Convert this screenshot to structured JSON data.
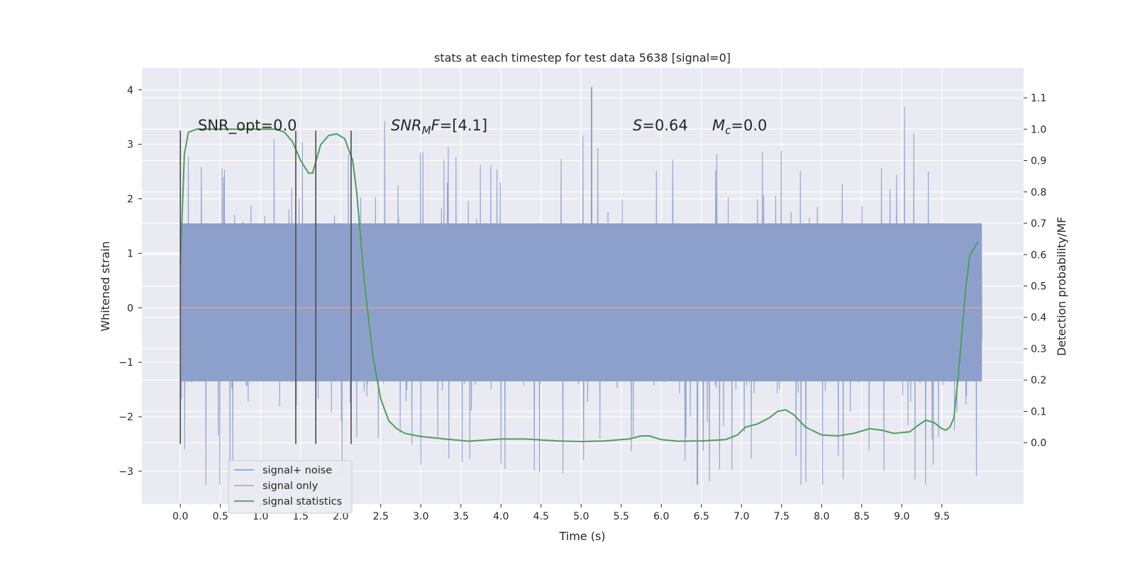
{
  "chart_data": {
    "type": "line",
    "title": "stats at each timestep for test data 5638 [signal=0]",
    "xlabel": "Time (s)",
    "ylabel_left": "Whitened strain",
    "ylabel_right": "Detection probability/MF",
    "xlim": [
      -0.48,
      10.52
    ],
    "ylim_left": [
      -3.6,
      4.4
    ],
    "ylim_right": [
      -0.195,
      1.195
    ],
    "x_ticks": [
      "0.0",
      "0.5",
      "1.0",
      "1.5",
      "2.0",
      "2.5",
      "3.0",
      "3.5",
      "4.0",
      "4.5",
      "5.0",
      "5.5",
      "6.0",
      "6.5",
      "7.0",
      "7.5",
      "8.0",
      "8.5",
      "9.0",
      "9.5"
    ],
    "y_left_ticks": [
      {
        "value": -3,
        "label": "−3"
      },
      {
        "value": -2,
        "label": "−2"
      },
      {
        "value": -1,
        "label": "−1"
      },
      {
        "value": 0,
        "label": "0"
      },
      {
        "value": 1,
        "label": "1"
      },
      {
        "value": 2,
        "label": "2"
      },
      {
        "value": 3,
        "label": "3"
      },
      {
        "value": 4,
        "label": "4"
      }
    ],
    "y_right_ticks": [
      "0.0",
      "0.1",
      "0.2",
      "0.3",
      "0.4",
      "0.5",
      "0.6",
      "0.7",
      "0.8",
      "0.9",
      "1.0",
      "1.1"
    ],
    "grid": true,
    "legend_position": "lower-left",
    "annotations": {
      "snr_opt": "SNR_opt=0.0",
      "snr_mf_var": "SNR",
      "snr_mf_sub": "M",
      "snr_mf_var2": "F",
      "snr_mf_val": "=[4.1]",
      "s_var": "S",
      "s_val": "=0.64",
      "mc_var": "M",
      "mc_sub": "c",
      "mc_val": "=0.0"
    },
    "vertical_markers": {
      "x": [
        0.0,
        1.44,
        1.69,
        2.13
      ],
      "y_range": [
        -2.5,
        3.25
      ]
    },
    "series": [
      {
        "name": "signal+ noise",
        "color": "#8da0cb",
        "kind": "noise",
        "x_range": [
          0.0,
          10.0
        ],
        "band_bottom": -1.35,
        "band_top": 1.55,
        "max_spike": 4.05,
        "min_spike": -3.25
      },
      {
        "name": "signal only",
        "color": "#e59f86",
        "x": [
          0.0,
          10.0
        ],
        "y": [
          0.0,
          0.0
        ]
      },
      {
        "name": "signal statistics",
        "color": "#4c9f59",
        "axis": "right",
        "x": [
          0.0,
          0.05,
          0.1,
          0.2,
          0.3,
          0.5,
          0.8,
          1.0,
          1.1,
          1.2,
          1.3,
          1.4,
          1.5,
          1.6,
          1.65,
          1.75,
          1.85,
          1.95,
          2.05,
          2.15,
          2.2,
          2.3,
          2.4,
          2.5,
          2.6,
          2.7,
          2.8,
          3.0,
          3.3,
          3.6,
          4.0,
          4.3,
          4.7,
          5.0,
          5.3,
          5.6,
          5.75,
          5.85,
          6.0,
          6.2,
          6.5,
          6.8,
          6.95,
          7.05,
          7.2,
          7.35,
          7.45,
          7.55,
          7.65,
          7.8,
          8.0,
          8.2,
          8.4,
          8.6,
          8.75,
          8.9,
          9.1,
          9.2,
          9.3,
          9.4,
          9.5,
          9.55,
          9.6,
          9.65,
          9.7,
          9.75,
          9.8,
          9.85,
          9.9,
          9.95
        ],
        "y": [
          0.57,
          0.92,
          0.99,
          1.0,
          1.0,
          1.0,
          1.0,
          1.0,
          1.0,
          1.0,
          0.99,
          0.96,
          0.9,
          0.86,
          0.86,
          0.95,
          0.98,
          0.985,
          0.97,
          0.9,
          0.8,
          0.5,
          0.28,
          0.14,
          0.07,
          0.045,
          0.03,
          0.02,
          0.012,
          0.005,
          0.012,
          0.012,
          0.006,
          0.004,
          0.006,
          0.012,
          0.022,
          0.022,
          0.01,
          0.005,
          0.006,
          0.01,
          0.025,
          0.05,
          0.06,
          0.08,
          0.1,
          0.105,
          0.09,
          0.05,
          0.025,
          0.022,
          0.03,
          0.045,
          0.04,
          0.03,
          0.035,
          0.055,
          0.072,
          0.065,
          0.045,
          0.04,
          0.05,
          0.08,
          0.2,
          0.35,
          0.5,
          0.6,
          0.62,
          0.64
        ]
      }
    ]
  }
}
